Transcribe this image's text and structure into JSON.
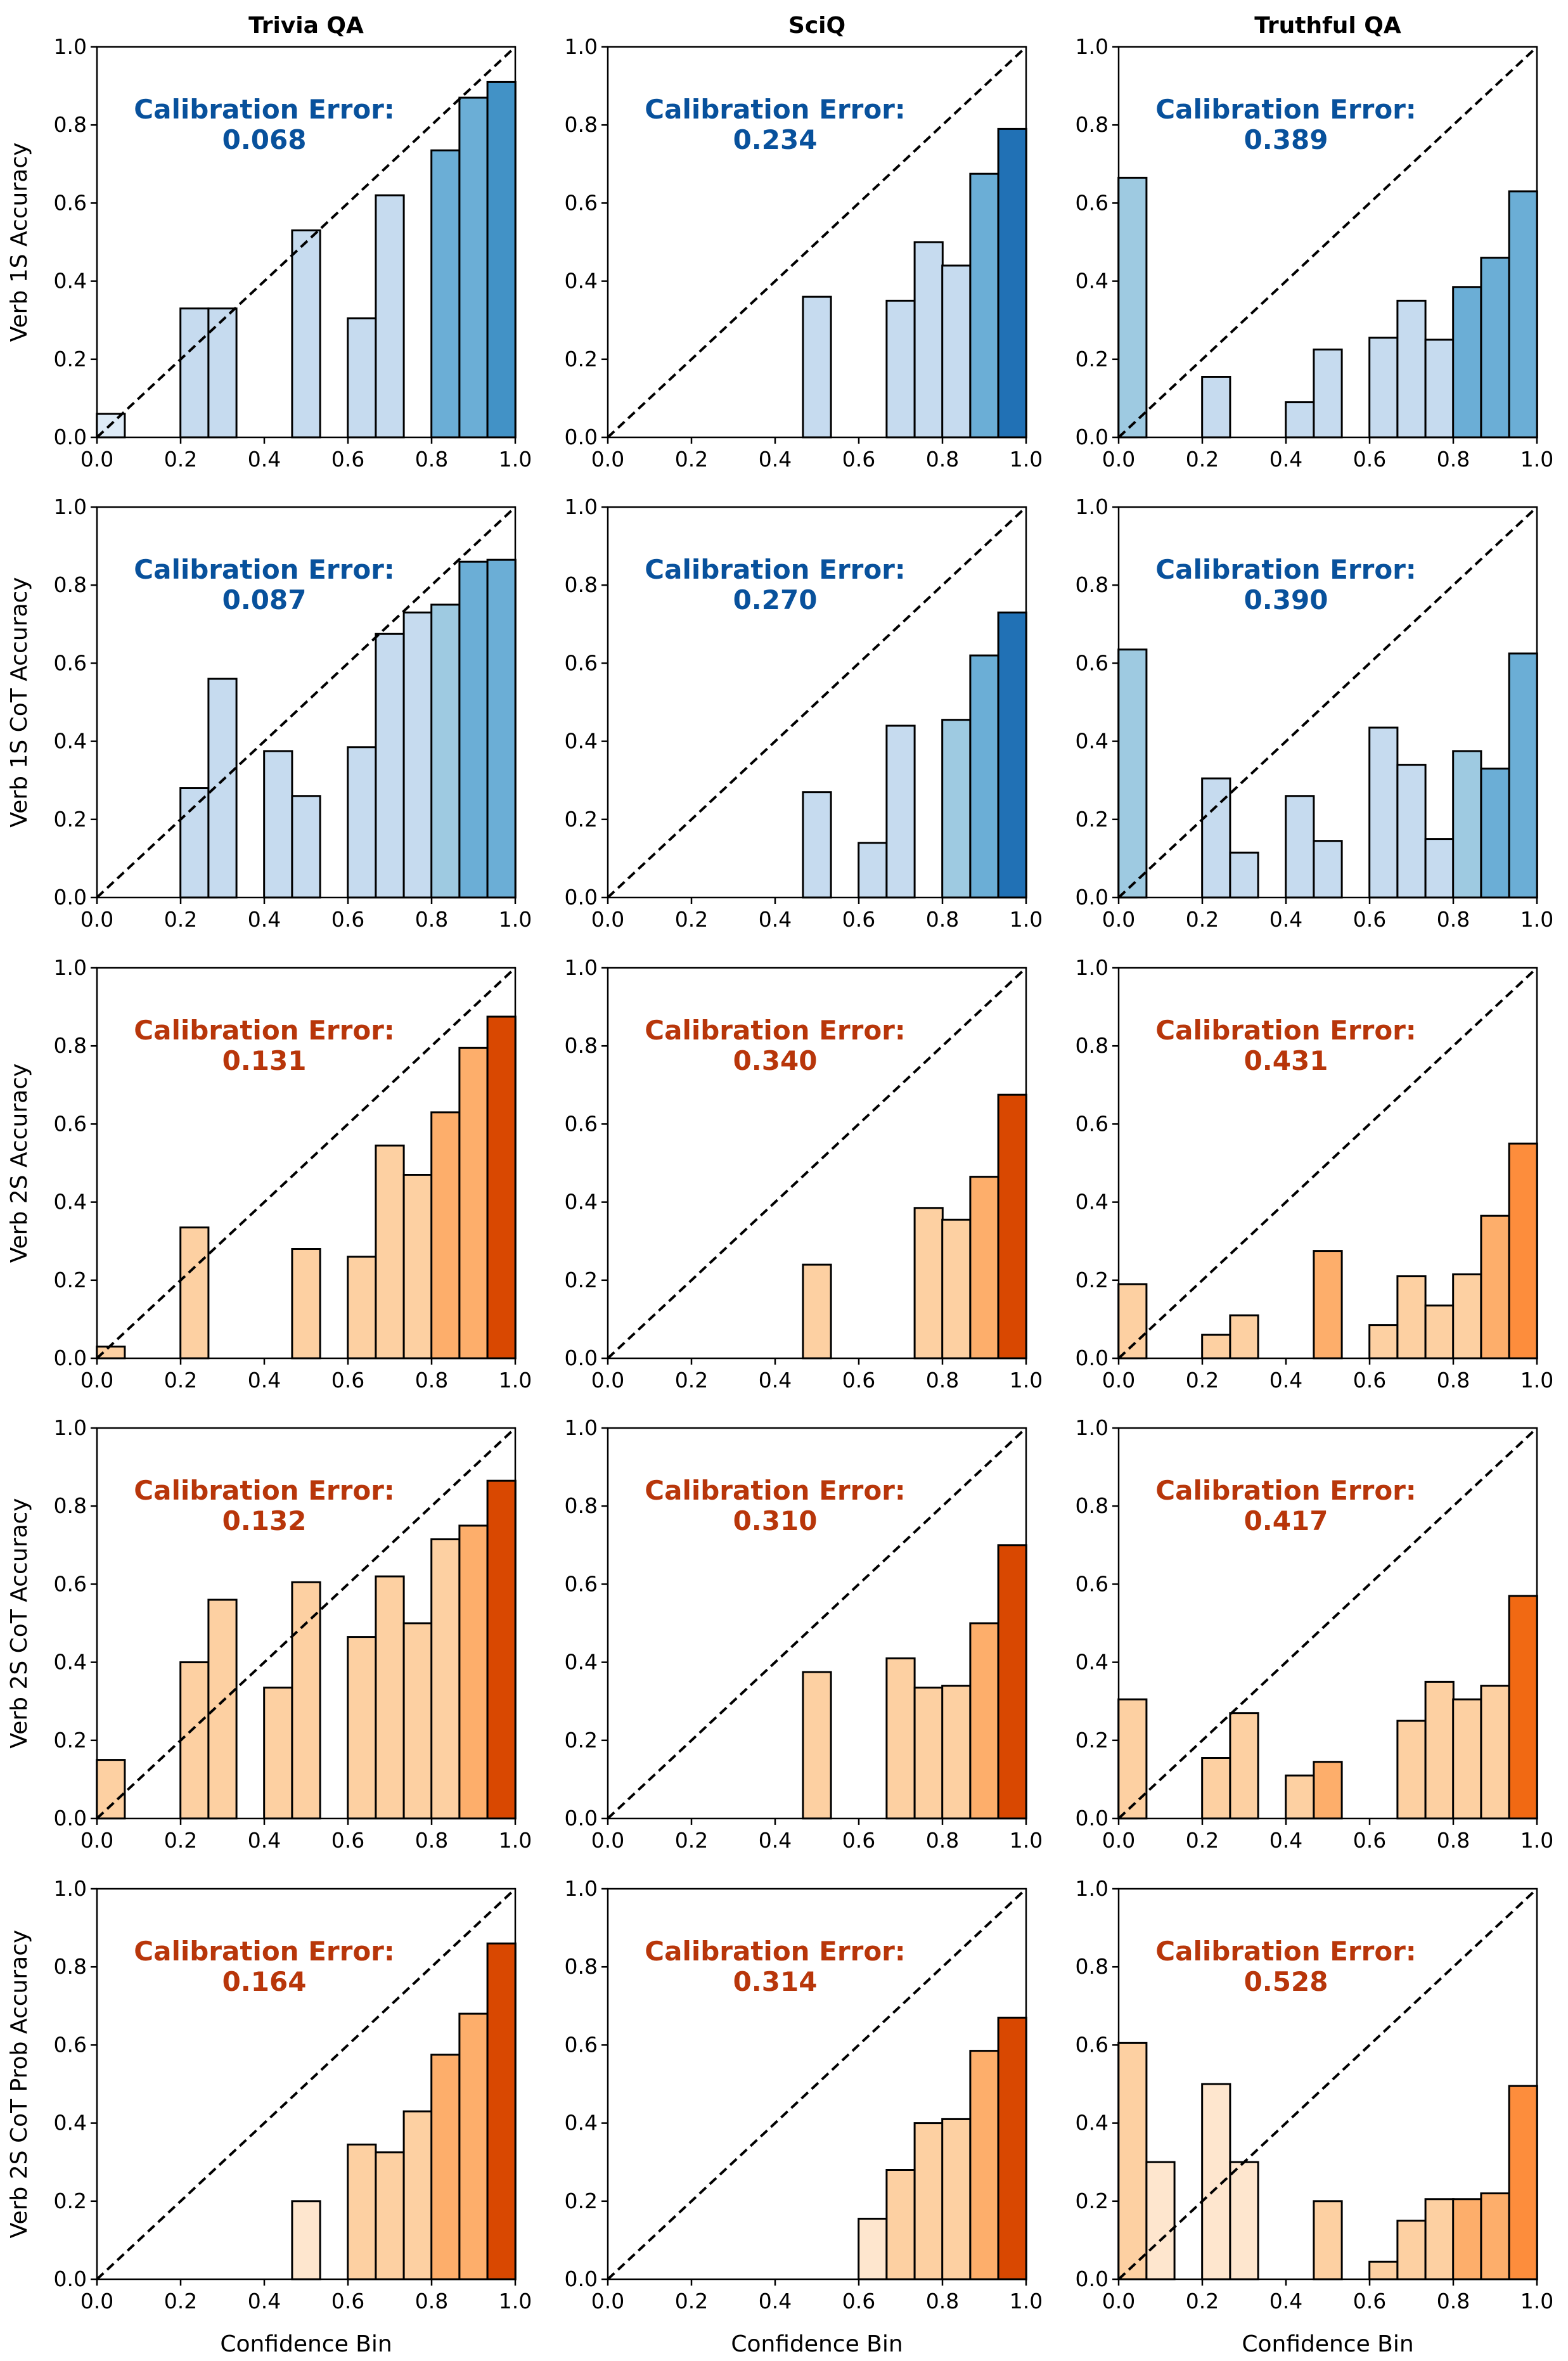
{
  "chart_data": {
    "type": "bar",
    "subtype": "reliability diagram grid",
    "columns": [
      "Trivia QA",
      "SciQ",
      "Truthful QA"
    ],
    "rows": [
      "Verb 1S Accuracy",
      "Verb 1S CoT Accuracy",
      "Verb 2S Accuracy",
      "Verb 2S CoT Accuracy",
      "Verb 2S CoT Prob Accuracy"
    ],
    "xlabel": "Confidence Bin",
    "xlim": [
      0,
      1
    ],
    "ylim": [
      0,
      1
    ],
    "ticks": [
      "0.0",
      "0.2",
      "0.4",
      "0.6",
      "0.8",
      "1.0"
    ],
    "bin_width": 0.067,
    "diagonal": "y = x (dashed)",
    "calibration_label": "Calibration Error:",
    "colors": {
      "blue_text": "#08519c",
      "orange_text": "#b8360a",
      "blue": [
        "#deebf7",
        "#c6dbef",
        "#9ecae1",
        "#6baed6",
        "#4292c6",
        "#2171b5",
        "#08519c"
      ],
      "orange": [
        "#fee6ce",
        "#fdd0a2",
        "#fdae6b",
        "#fd8d3c",
        "#f16913",
        "#d94801",
        "#a63603"
      ]
    },
    "panels": [
      {
        "row": 0,
        "col": 0,
        "palette": "blue",
        "error": "0.068",
        "bars": [
          {
            "x": 0.033,
            "y": 0.06,
            "s": 0.05
          },
          {
            "x": 0.233,
            "y": 0.33,
            "s": 0.1
          },
          {
            "x": 0.3,
            "y": 0.33,
            "s": 0.1
          },
          {
            "x": 0.5,
            "y": 0.53,
            "s": 0.1
          },
          {
            "x": 0.633,
            "y": 0.305,
            "s": 0.1
          },
          {
            "x": 0.7,
            "y": 0.62,
            "s": 0.1
          },
          {
            "x": 0.833,
            "y": 0.735,
            "s": 0.45
          },
          {
            "x": 0.9,
            "y": 0.87,
            "s": 0.55
          },
          {
            "x": 0.967,
            "y": 0.91,
            "s": 0.6
          }
        ]
      },
      {
        "row": 0,
        "col": 1,
        "palette": "blue",
        "error": "0.234",
        "bars": [
          {
            "x": 0.5,
            "y": 0.36,
            "s": 0.1
          },
          {
            "x": 0.7,
            "y": 0.35,
            "s": 0.1
          },
          {
            "x": 0.767,
            "y": 0.5,
            "s": 0.15
          },
          {
            "x": 0.833,
            "y": 0.44,
            "s": 0.2
          },
          {
            "x": 0.9,
            "y": 0.675,
            "s": 0.45
          },
          {
            "x": 0.967,
            "y": 0.79,
            "s": 0.75
          }
        ]
      },
      {
        "row": 0,
        "col": 2,
        "palette": "blue",
        "error": "0.389",
        "bars": [
          {
            "x": 0.033,
            "y": 0.665,
            "s": 0.25
          },
          {
            "x": 0.233,
            "y": 0.155,
            "s": 0.1
          },
          {
            "x": 0.433,
            "y": 0.09,
            "s": 0.1
          },
          {
            "x": 0.5,
            "y": 0.225,
            "s": 0.15
          },
          {
            "x": 0.633,
            "y": 0.255,
            "s": 0.2
          },
          {
            "x": 0.7,
            "y": 0.35,
            "s": 0.2
          },
          {
            "x": 0.767,
            "y": 0.25,
            "s": 0.2
          },
          {
            "x": 0.833,
            "y": 0.385,
            "s": 0.45
          },
          {
            "x": 0.9,
            "y": 0.46,
            "s": 0.5
          },
          {
            "x": 0.967,
            "y": 0.63,
            "s": 0.55
          }
        ]
      },
      {
        "row": 1,
        "col": 0,
        "palette": "blue",
        "error": "0.087",
        "bars": [
          {
            "x": 0.233,
            "y": 0.28,
            "s": 0.1
          },
          {
            "x": 0.3,
            "y": 0.56,
            "s": 0.1
          },
          {
            "x": 0.433,
            "y": 0.375,
            "s": 0.1
          },
          {
            "x": 0.5,
            "y": 0.26,
            "s": 0.1
          },
          {
            "x": 0.633,
            "y": 0.385,
            "s": 0.1
          },
          {
            "x": 0.7,
            "y": 0.675,
            "s": 0.15
          },
          {
            "x": 0.767,
            "y": 0.73,
            "s": 0.2
          },
          {
            "x": 0.833,
            "y": 0.75,
            "s": 0.3
          },
          {
            "x": 0.9,
            "y": 0.86,
            "s": 0.45
          },
          {
            "x": 0.967,
            "y": 0.865,
            "s": 0.5
          }
        ]
      },
      {
        "row": 1,
        "col": 1,
        "palette": "blue",
        "error": "0.270",
        "bars": [
          {
            "x": 0.5,
            "y": 0.27,
            "s": 0.1
          },
          {
            "x": 0.633,
            "y": 0.14,
            "s": 0.1
          },
          {
            "x": 0.7,
            "y": 0.44,
            "s": 0.1
          },
          {
            "x": 0.833,
            "y": 0.455,
            "s": 0.3
          },
          {
            "x": 0.9,
            "y": 0.62,
            "s": 0.55
          },
          {
            "x": 0.967,
            "y": 0.73,
            "s": 0.75
          }
        ]
      },
      {
        "row": 1,
        "col": 2,
        "palette": "blue",
        "error": "0.390",
        "bars": [
          {
            "x": 0.033,
            "y": 0.635,
            "s": 0.25
          },
          {
            "x": 0.233,
            "y": 0.305,
            "s": 0.1
          },
          {
            "x": 0.3,
            "y": 0.115,
            "s": 0.1
          },
          {
            "x": 0.433,
            "y": 0.26,
            "s": 0.1
          },
          {
            "x": 0.5,
            "y": 0.145,
            "s": 0.1
          },
          {
            "x": 0.633,
            "y": 0.435,
            "s": 0.2
          },
          {
            "x": 0.7,
            "y": 0.34,
            "s": 0.2
          },
          {
            "x": 0.767,
            "y": 0.15,
            "s": 0.2
          },
          {
            "x": 0.833,
            "y": 0.375,
            "s": 0.4
          },
          {
            "x": 0.9,
            "y": 0.33,
            "s": 0.45
          },
          {
            "x": 0.967,
            "y": 0.625,
            "s": 0.45
          }
        ]
      },
      {
        "row": 2,
        "col": 0,
        "palette": "orange",
        "error": "0.131",
        "bars": [
          {
            "x": 0.033,
            "y": 0.03,
            "s": 0.15
          },
          {
            "x": 0.233,
            "y": 0.335,
            "s": 0.1
          },
          {
            "x": 0.5,
            "y": 0.28,
            "s": 0.2
          },
          {
            "x": 0.633,
            "y": 0.26,
            "s": 0.1
          },
          {
            "x": 0.7,
            "y": 0.545,
            "s": 0.1
          },
          {
            "x": 0.767,
            "y": 0.47,
            "s": 0.15
          },
          {
            "x": 0.833,
            "y": 0.63,
            "s": 0.25
          },
          {
            "x": 0.9,
            "y": 0.795,
            "s": 0.3
          },
          {
            "x": 0.967,
            "y": 0.875,
            "s": 0.8
          }
        ]
      },
      {
        "row": 2,
        "col": 1,
        "palette": "orange",
        "error": "0.340",
        "bars": [
          {
            "x": 0.5,
            "y": 0.24,
            "s": 0.1
          },
          {
            "x": 0.767,
            "y": 0.385,
            "s": 0.1
          },
          {
            "x": 0.833,
            "y": 0.355,
            "s": 0.1
          },
          {
            "x": 0.9,
            "y": 0.465,
            "s": 0.3
          },
          {
            "x": 0.967,
            "y": 0.675,
            "s": 0.8
          }
        ]
      },
      {
        "row": 2,
        "col": 2,
        "palette": "orange",
        "error": "0.431",
        "bars": [
          {
            "x": 0.033,
            "y": 0.19,
            "s": 0.15
          },
          {
            "x": 0.233,
            "y": 0.06,
            "s": 0.1
          },
          {
            "x": 0.3,
            "y": 0.11,
            "s": 0.1
          },
          {
            "x": 0.5,
            "y": 0.275,
            "s": 0.35
          },
          {
            "x": 0.633,
            "y": 0.085,
            "s": 0.1
          },
          {
            "x": 0.7,
            "y": 0.21,
            "s": 0.2
          },
          {
            "x": 0.767,
            "y": 0.135,
            "s": 0.1
          },
          {
            "x": 0.833,
            "y": 0.215,
            "s": 0.15
          },
          {
            "x": 0.9,
            "y": 0.365,
            "s": 0.25
          },
          {
            "x": 0.967,
            "y": 0.55,
            "s": 0.5
          }
        ]
      },
      {
        "row": 3,
        "col": 0,
        "palette": "orange",
        "error": "0.132",
        "bars": [
          {
            "x": 0.033,
            "y": 0.15,
            "s": 0.15
          },
          {
            "x": 0.233,
            "y": 0.4,
            "s": 0.1
          },
          {
            "x": 0.3,
            "y": 0.56,
            "s": 0.1
          },
          {
            "x": 0.433,
            "y": 0.335,
            "s": 0.1
          },
          {
            "x": 0.5,
            "y": 0.605,
            "s": 0.15
          },
          {
            "x": 0.633,
            "y": 0.465,
            "s": 0.1
          },
          {
            "x": 0.7,
            "y": 0.62,
            "s": 0.1
          },
          {
            "x": 0.767,
            "y": 0.5,
            "s": 0.1
          },
          {
            "x": 0.833,
            "y": 0.715,
            "s": 0.15
          },
          {
            "x": 0.9,
            "y": 0.75,
            "s": 0.25
          },
          {
            "x": 0.967,
            "y": 0.865,
            "s": 0.75
          }
        ]
      },
      {
        "row": 3,
        "col": 1,
        "palette": "orange",
        "error": "0.310",
        "bars": [
          {
            "x": 0.5,
            "y": 0.375,
            "s": 0.1
          },
          {
            "x": 0.7,
            "y": 0.41,
            "s": 0.1
          },
          {
            "x": 0.767,
            "y": 0.335,
            "s": 0.1
          },
          {
            "x": 0.833,
            "y": 0.34,
            "s": 0.1
          },
          {
            "x": 0.9,
            "y": 0.5,
            "s": 0.3
          },
          {
            "x": 0.967,
            "y": 0.7,
            "s": 0.8
          }
        ]
      },
      {
        "row": 3,
        "col": 2,
        "palette": "orange",
        "error": "0.417",
        "bars": [
          {
            "x": 0.033,
            "y": 0.305,
            "s": 0.2
          },
          {
            "x": 0.233,
            "y": 0.155,
            "s": 0.1
          },
          {
            "x": 0.3,
            "y": 0.27,
            "s": 0.1
          },
          {
            "x": 0.433,
            "y": 0.11,
            "s": 0.1
          },
          {
            "x": 0.5,
            "y": 0.145,
            "s": 0.25
          },
          {
            "x": 0.7,
            "y": 0.25,
            "s": 0.1
          },
          {
            "x": 0.767,
            "y": 0.35,
            "s": 0.15
          },
          {
            "x": 0.833,
            "y": 0.305,
            "s": 0.15
          },
          {
            "x": 0.9,
            "y": 0.34,
            "s": 0.2
          },
          {
            "x": 0.967,
            "y": 0.57,
            "s": 0.6
          }
        ]
      },
      {
        "row": 4,
        "col": 0,
        "palette": "orange",
        "error": "0.164",
        "bars": [
          {
            "x": 0.5,
            "y": 0.2,
            "s": 0.05
          },
          {
            "x": 0.633,
            "y": 0.345,
            "s": 0.1
          },
          {
            "x": 0.7,
            "y": 0.325,
            "s": 0.1
          },
          {
            "x": 0.767,
            "y": 0.43,
            "s": 0.15
          },
          {
            "x": 0.833,
            "y": 0.575,
            "s": 0.25
          },
          {
            "x": 0.9,
            "y": 0.68,
            "s": 0.3
          },
          {
            "x": 0.967,
            "y": 0.86,
            "s": 0.75
          }
        ]
      },
      {
        "row": 4,
        "col": 1,
        "palette": "orange",
        "error": "0.314",
        "bars": [
          {
            "x": 0.633,
            "y": 0.155,
            "s": 0.05
          },
          {
            "x": 0.7,
            "y": 0.28,
            "s": 0.1
          },
          {
            "x": 0.767,
            "y": 0.4,
            "s": 0.15
          },
          {
            "x": 0.833,
            "y": 0.41,
            "s": 0.2
          },
          {
            "x": 0.9,
            "y": 0.585,
            "s": 0.3
          },
          {
            "x": 0.967,
            "y": 0.67,
            "s": 0.75
          }
        ]
      },
      {
        "row": 4,
        "col": 2,
        "palette": "orange",
        "error": "0.528",
        "bars": [
          {
            "x": 0.033,
            "y": 0.605,
            "s": 0.15
          },
          {
            "x": 0.1,
            "y": 0.3,
            "s": 0.05
          },
          {
            "x": 0.233,
            "y": 0.5,
            "s": 0.05
          },
          {
            "x": 0.3,
            "y": 0.3,
            "s": 0.05
          },
          {
            "x": 0.5,
            "y": 0.2,
            "s": 0.1
          },
          {
            "x": 0.633,
            "y": 0.045,
            "s": 0.1
          },
          {
            "x": 0.7,
            "y": 0.15,
            "s": 0.15
          },
          {
            "x": 0.767,
            "y": 0.205,
            "s": 0.2
          },
          {
            "x": 0.833,
            "y": 0.205,
            "s": 0.4
          },
          {
            "x": 0.9,
            "y": 0.22,
            "s": 0.25
          },
          {
            "x": 0.967,
            "y": 0.495,
            "s": 0.55
          }
        ]
      }
    ]
  }
}
